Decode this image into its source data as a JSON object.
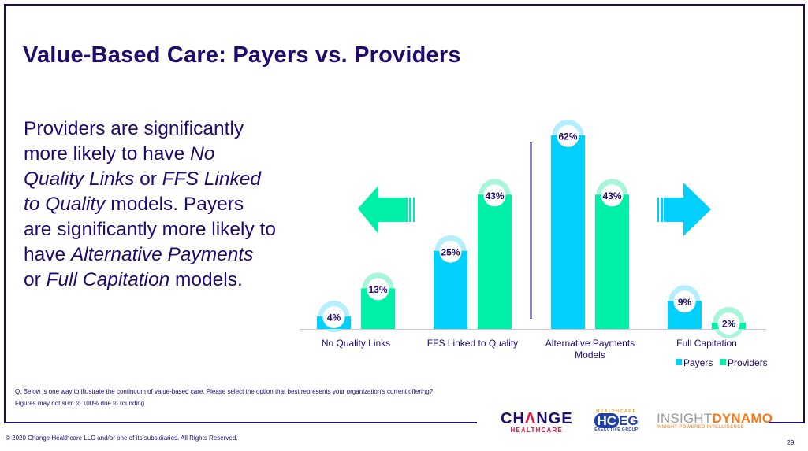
{
  "slide": {
    "title": "Value-Based Care: Payers vs. Providers",
    "body_segments": [
      {
        "text": "Providers are significantly more likely to have ",
        "italic": false
      },
      {
        "text": "No Quality Links",
        "italic": true
      },
      {
        "text": " or ",
        "italic": false
      },
      {
        "text": "FFS Linked to Quality",
        "italic": true
      },
      {
        "text": " models. Payers are significantly more likely to have ",
        "italic": false
      },
      {
        "text": "Alternative Payments",
        "italic": true
      },
      {
        "text": " or ",
        "italic": false
      },
      {
        "text": "Full Capitation",
        "italic": true
      },
      {
        "text": " models.",
        "italic": false
      }
    ],
    "footnote_question": "Q. Below is one way to illustrate the continuum of value-based care. Please select the option that best represents your organization's current offering?",
    "footnote_rounding": "Figures may not sum to 100% due to rounding",
    "copyright": "© 2020 Change Healthcare LLC and/or one of its subsidiaries.  All Rights Reserved.",
    "page_number": "29",
    "logos": {
      "change_line1_a": "CH",
      "change_line1_b": "Λ",
      "change_line1_c": "NGE",
      "change_line2": "HEALTHCARE",
      "hceg_top": "HEALTHCARE",
      "hceg_hc": "HC",
      "hceg_eg": "EG",
      "hceg_bottom": "EXECUTIVE GROUP",
      "insight_a": "INSIGHT",
      "insight_b": "DYNAMO",
      "insight_tagline": "INSIGHT-POWERED INTELLIGENCE"
    }
  },
  "colors": {
    "navy": "#1f0a6e",
    "payers": "#00d0fb",
    "providers": "#00efa8",
    "payers_halo": "#b5eefc",
    "providers_halo": "#a8f5dc"
  },
  "chart_data": {
    "type": "bar",
    "title": "",
    "xlabel": "",
    "ylabel": "",
    "ylim": [
      0,
      70
    ],
    "grid": false,
    "legend_position": "bottom-right",
    "value_suffix": "%",
    "categories": [
      "No Quality Links",
      "FFS Linked to Quality",
      "Alternative Payments Models",
      "Full Capitation"
    ],
    "category_lines": [
      [
        "No Quality Links"
      ],
      [
        "FFS Linked to Quality"
      ],
      [
        "Alternative Payments",
        "Models"
      ],
      [
        "Full Capitation"
      ]
    ],
    "series": [
      {
        "name": "Payers",
        "values": [
          4,
          25,
          62,
          9
        ]
      },
      {
        "name": "Providers",
        "values": [
          13,
          43,
          43,
          2
        ]
      }
    ],
    "annotations": [
      {
        "type": "arrow",
        "direction": "left",
        "meaning": "toward fee-for-service",
        "series": "Providers"
      },
      {
        "type": "arrow",
        "direction": "right",
        "meaning": "toward value-based",
        "series": "Payers"
      },
      {
        "type": "divider",
        "between": [
          "FFS Linked to Quality",
          "Alternative Payments Models"
        ]
      }
    ]
  }
}
